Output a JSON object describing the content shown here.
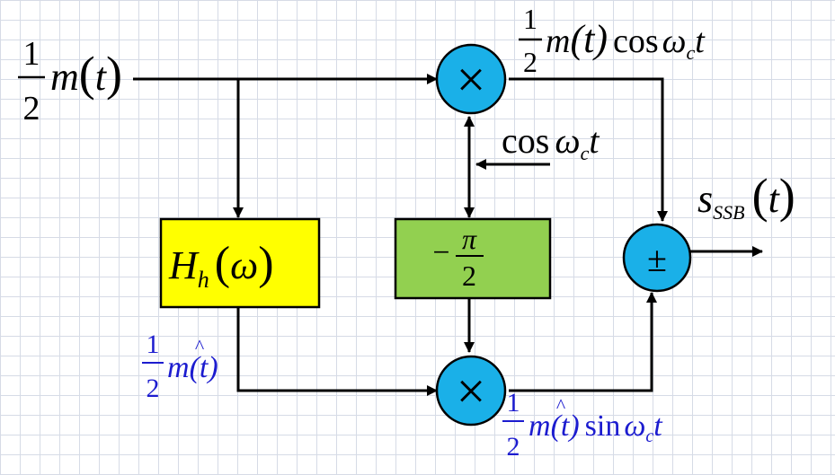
{
  "diagram": {
    "input": {
      "frac_num": "1",
      "frac_den": "2",
      "signal": "m",
      "lparen": "(",
      "var": "t",
      "rparen": ")"
    },
    "top_output": {
      "frac_num": "1",
      "frac_den": "2",
      "signal": "m",
      "arg": "(t)",
      "func": "cos",
      "omega": "ω",
      "sub": "c",
      "var": "t"
    },
    "carrier": {
      "func": "cos",
      "omega": "ω",
      "sub": "c",
      "var": "t"
    },
    "hilbert_block": {
      "symbol": "H",
      "sub": "h",
      "lparen": "(",
      "omega": "ω",
      "rparen": ")",
      "fill": "#ffff00"
    },
    "phase_block": {
      "sign": "−",
      "num": "π",
      "den": "2",
      "fill": "#92d050"
    },
    "hilbert_out": {
      "frac_num": "1",
      "frac_den": "2",
      "signal": "m",
      "hat": "^",
      "arg": "(t)",
      "color": "#1c1ccf"
    },
    "bottom_output": {
      "frac_num": "1",
      "frac_den": "2",
      "signal": "m",
      "hat": "^",
      "arg": "(t)",
      "func": "sin",
      "omega": "ω",
      "sub": "c",
      "var": "t",
      "color": "#1c1ccf"
    },
    "multiplier_symbol": "×",
    "adder_symbol": "±",
    "output": {
      "symbol": "s",
      "sub": "SSB",
      "lparen": "(",
      "var": "t",
      "rparen": ")"
    },
    "node_color": "#1ab0e8"
  }
}
